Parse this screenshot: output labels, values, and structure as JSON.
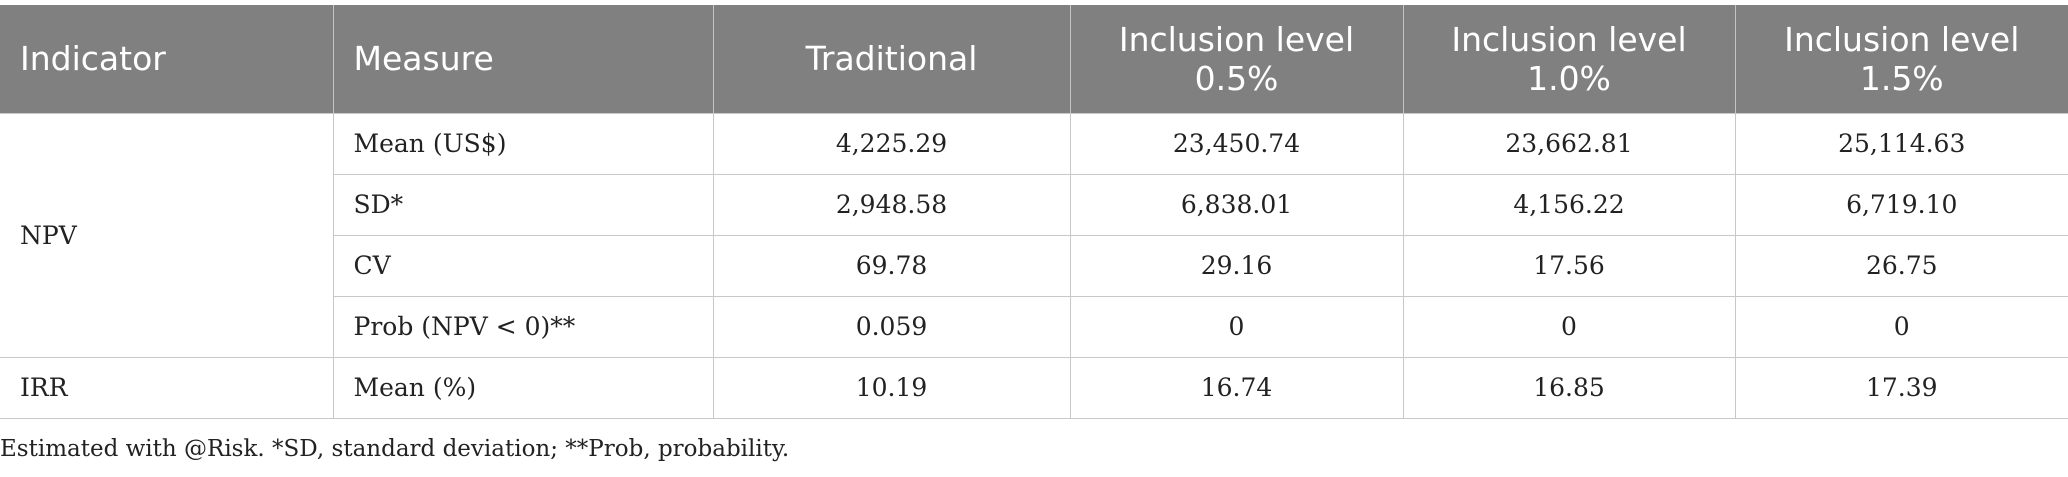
{
  "table": {
    "headers": [
      "Indicator",
      "Measure",
      "Traditional",
      "Inclusion level 0.5%",
      "Inclusion level 1.0%",
      "Inclusion level 1.5%"
    ],
    "header_lines": [
      [
        "Inclusion level",
        "0.5%"
      ],
      [
        "Inclusion level",
        "1.0%"
      ],
      [
        "Inclusion level",
        "1.5%"
      ]
    ],
    "groups": [
      {
        "indicator": "NPV",
        "rows": [
          {
            "measure": "Mean (US$)",
            "values": [
              "4,225.29",
              "23,450.74",
              "23,662.81",
              "25,114.63"
            ]
          },
          {
            "measure": "SD*",
            "values": [
              "2,948.58",
              "6,838.01",
              "4,156.22",
              "6,719.10"
            ]
          },
          {
            "measure": "CV",
            "values": [
              "69.78",
              "29.16",
              "17.56",
              "26.75"
            ]
          },
          {
            "measure": "Prob (NPV < 0)**",
            "values": [
              "0.059",
              "0",
              "0",
              "0"
            ]
          }
        ]
      },
      {
        "indicator": "IRR",
        "rows": [
          {
            "measure": "Mean (%)",
            "values": [
              "10.19",
              "16.74",
              "16.85",
              "17.39"
            ]
          }
        ]
      }
    ]
  },
  "footnote": "Estimated with @Risk. *SD, standard deviation; **Prob, probability."
}
